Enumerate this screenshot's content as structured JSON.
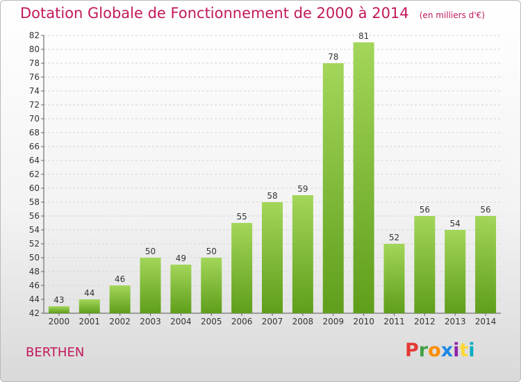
{
  "title": "Dotation Globale de Fonctionnement de 2000 à 2014",
  "unit": "(en milliers d'€)",
  "commune": "BERTHEN",
  "logo": {
    "text": "Proxiti",
    "colors": [
      "#e53935",
      "#43a047",
      "#fb8c00",
      "#1e88e5",
      "#8e24aa",
      "#fdd835",
      "#00acc1"
    ]
  },
  "chart_data": {
    "type": "bar",
    "title": "Dotation Globale de Fonctionnement de 2000 à 2014",
    "categories": [
      "2000",
      "2001",
      "2002",
      "2003",
      "2004",
      "2005",
      "2006",
      "2007",
      "2008",
      "2009",
      "2010",
      "2011",
      "2012",
      "2013",
      "2014"
    ],
    "values": [
      43,
      44,
      46,
      50,
      49,
      50,
      55,
      58,
      59,
      78,
      81,
      52,
      56,
      54,
      56
    ],
    "ylim": [
      42,
      82
    ],
    "yticks": [
      42,
      44,
      46,
      48,
      50,
      52,
      54,
      56,
      58,
      60,
      62,
      64,
      66,
      68,
      70,
      72,
      74,
      76,
      78,
      80,
      82
    ],
    "grid": true,
    "bar_color": "#8cc63f",
    "xlabel": "",
    "ylabel": ""
  }
}
